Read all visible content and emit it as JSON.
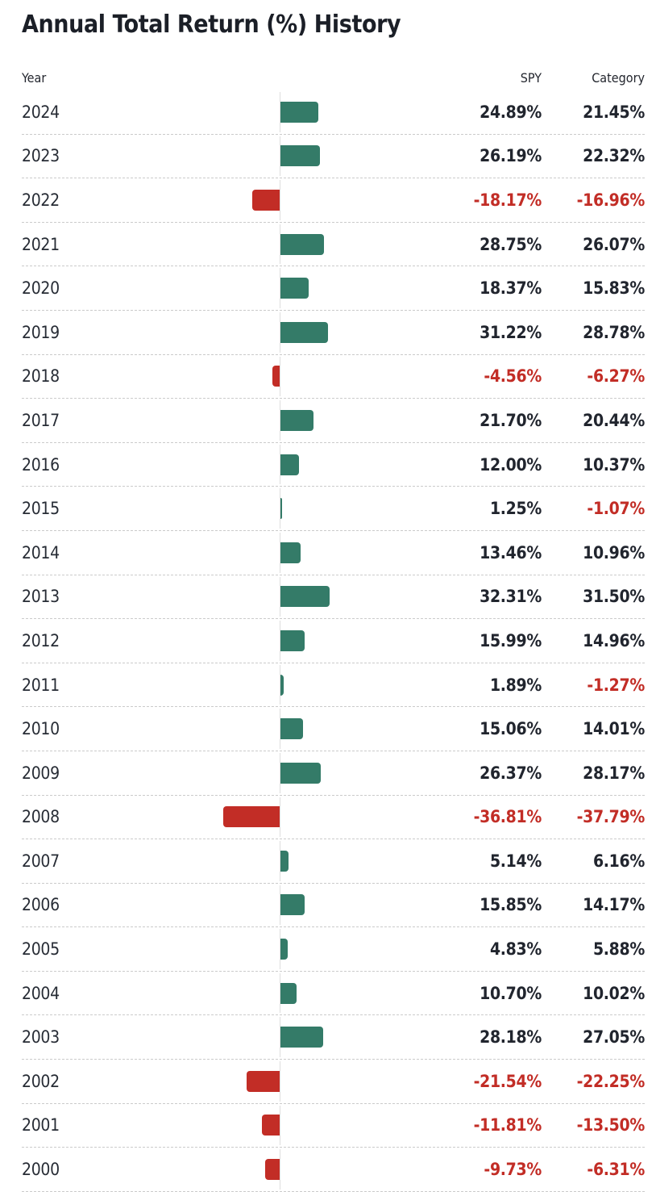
{
  "page": {
    "title": "Annual Total Return (%) History"
  },
  "table": {
    "columns": [
      "Year",
      "SPY",
      "Category"
    ]
  },
  "colors": {
    "positive_bar": "#347b68",
    "negative_bar": "#c22d26",
    "positive_text": "#21252e",
    "negative_text": "#c22d26",
    "year_text": "#272c35",
    "zero_line": "#dedede",
    "separator": "#cbcbcb"
  },
  "chart_data": {
    "type": "bar",
    "orientation": "horizontal",
    "title": "Annual Total Return (%) History",
    "bar_series": "SPY",
    "value_format": "0.00%",
    "grid": false,
    "zero_line": true,
    "xlim": [
      -40,
      35
    ],
    "categories": [
      "2024",
      "2023",
      "2022",
      "2021",
      "2020",
      "2019",
      "2018",
      "2017",
      "2016",
      "2015",
      "2014",
      "2013",
      "2012",
      "2011",
      "2010",
      "2009",
      "2008",
      "2007",
      "2006",
      "2005",
      "2004",
      "2003",
      "2002",
      "2001",
      "2000"
    ],
    "series": [
      {
        "name": "SPY",
        "values": [
          24.89,
          26.19,
          -18.17,
          28.75,
          18.37,
          31.22,
          -4.56,
          21.7,
          12.0,
          1.25,
          13.46,
          32.31,
          15.99,
          1.89,
          15.06,
          26.37,
          -36.81,
          5.14,
          15.85,
          4.83,
          10.7,
          28.18,
          -21.54,
          -11.81,
          -9.73
        ]
      },
      {
        "name": "Category",
        "values": [
          21.45,
          22.32,
          -16.96,
          26.07,
          15.83,
          28.78,
          -6.27,
          20.44,
          10.37,
          -1.07,
          10.96,
          31.5,
          14.96,
          -1.27,
          14.01,
          28.17,
          -37.79,
          6.16,
          14.17,
          5.88,
          10.02,
          27.05,
          -22.25,
          -13.5,
          -6.31
        ]
      }
    ]
  }
}
